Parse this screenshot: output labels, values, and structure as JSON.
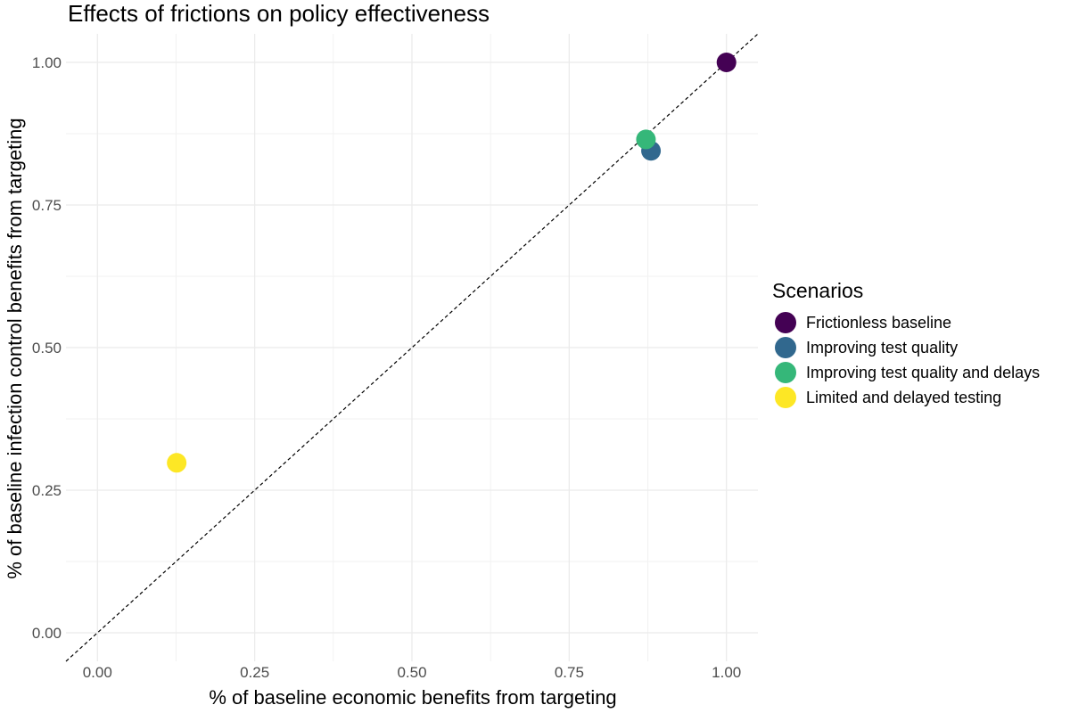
{
  "chart_data": {
    "type": "scatter",
    "title": "Effects of frictions on policy effectiveness",
    "xlabel": "% of baseline economic benefits from targeting",
    "ylabel": "% of baseline infection control benefits from targeting",
    "xlim": [
      -0.05,
      1.05
    ],
    "ylim": [
      -0.05,
      1.05
    ],
    "x_ticks": [
      0,
      0.25,
      0.5,
      0.75,
      1.0
    ],
    "x_tick_labels": [
      "0.00",
      "0.25",
      "0.50",
      "0.75",
      "1.00"
    ],
    "y_ticks": [
      0,
      0.25,
      0.5,
      0.75,
      1.0
    ],
    "y_tick_labels": [
      "0.00",
      "0.25",
      "0.50",
      "0.75",
      "1.00"
    ],
    "grid": true,
    "reference_line": "y = x (dashed)",
    "legend_title": "Scenarios",
    "legend_position": "right",
    "series": [
      {
        "name": "Frictionless baseline",
        "color": "#440154",
        "x": [
          1.0
        ],
        "y": [
          1.0
        ]
      },
      {
        "name": "Improving test quality",
        "color": "#31688E",
        "x": [
          0.88
        ],
        "y": [
          0.845
        ]
      },
      {
        "name": "Improving test quality and delays",
        "color": "#35B779",
        "x": [
          0.872
        ],
        "y": [
          0.865
        ]
      },
      {
        "name": "Limited and delayed testing",
        "color": "#FDE725",
        "x": [
          0.126
        ],
        "y": [
          0.298
        ]
      }
    ]
  }
}
